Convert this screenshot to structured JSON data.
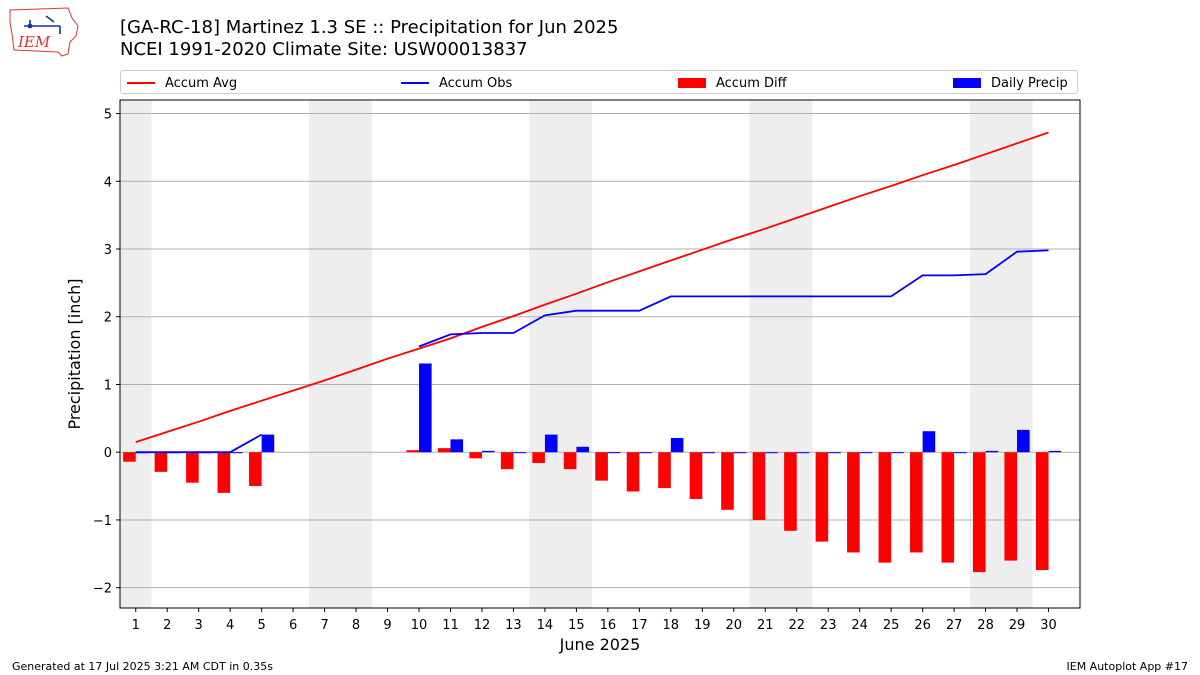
{
  "header": {
    "title_line1": "[GA-RC-18] Martinez 1.3 SE :: Precipitation for Jun 2025",
    "title_line2": "NCEI 1991-2020 Climate Site: USW00013837",
    "logo_text": "IEM"
  },
  "footer": {
    "left": "Generated at 17 Jul 2025 3:21 AM CDT in 0.35s",
    "right": "IEM Autoplot App #17"
  },
  "chart_data": {
    "type": "bar",
    "xlabel": "June 2025",
    "ylabel": "Precipitation [inch]",
    "xlim": [
      0.5,
      31
    ],
    "ylim": [
      -2.3,
      5.2
    ],
    "yticks": [
      -2,
      -1,
      0,
      1,
      2,
      3,
      4,
      5
    ],
    "ytick_labels": [
      "−2",
      "−1",
      "0",
      "1",
      "2",
      "3",
      "4",
      "5"
    ],
    "x": [
      1,
      2,
      3,
      4,
      5,
      6,
      7,
      8,
      9,
      10,
      11,
      12,
      13,
      14,
      15,
      16,
      17,
      18,
      19,
      20,
      21,
      22,
      23,
      24,
      25,
      26,
      27,
      28,
      29,
      30
    ],
    "xtick_labels": [
      "1",
      "2",
      "3",
      "4",
      "5",
      "6",
      "7",
      "8",
      "9",
      "10",
      "11",
      "12",
      "13",
      "14",
      "15",
      "16",
      "17",
      "18",
      "19",
      "20",
      "21",
      "22",
      "23",
      "24",
      "25",
      "26",
      "27",
      "28",
      "29",
      "30"
    ],
    "weekend_spans": [
      [
        0.5,
        1.5
      ],
      [
        6.5,
        8.5
      ],
      [
        13.5,
        15.5
      ],
      [
        20.5,
        22.5
      ],
      [
        27.5,
        29.5
      ]
    ],
    "grid": "y",
    "legend_position": "top",
    "colors": {
      "accum_avg": "#ff0000",
      "accum_obs": "#0000ff",
      "accum_diff": "#ff0000",
      "daily_precip": "#0000ff",
      "weekend_shade": "#eeeeee",
      "grid": "#b0b0b0"
    },
    "series": [
      {
        "name": "Accum Avg",
        "kind": "line",
        "values": [
          0.15,
          0.3,
          0.45,
          0.61,
          0.76,
          0.91,
          1.06,
          1.22,
          1.38,
          1.53,
          1.68,
          1.85,
          2.01,
          2.18,
          2.34,
          2.51,
          2.67,
          2.83,
          2.99,
          3.15,
          3.3,
          3.46,
          3.62,
          3.78,
          3.93,
          4.09,
          4.24,
          4.4,
          4.56,
          4.72
        ]
      },
      {
        "name": "Accum Obs",
        "kind": "line",
        "values": [
          0.0,
          0.0,
          0.0,
          0.0,
          0.26,
          null,
          null,
          null,
          null,
          1.56,
          1.74,
          1.76,
          1.76,
          2.02,
          2.09,
          2.09,
          2.09,
          2.3,
          2.3,
          2.3,
          2.3,
          2.3,
          2.3,
          2.3,
          2.3,
          2.61,
          2.61,
          2.63,
          2.96,
          2.98
        ]
      },
      {
        "name": "Accum Diff",
        "kind": "bar",
        "values": [
          -0.14,
          -0.29,
          -0.45,
          -0.6,
          -0.5,
          null,
          null,
          null,
          null,
          0.03,
          0.06,
          -0.09,
          -0.25,
          -0.16,
          -0.25,
          -0.42,
          -0.58,
          -0.53,
          -0.69,
          -0.85,
          -1.0,
          -1.16,
          -1.32,
          -1.48,
          -1.63,
          -1.48,
          -1.63,
          -1.77,
          -1.6,
          -1.74
        ]
      },
      {
        "name": "Daily Precip",
        "kind": "bar",
        "values": [
          0.0,
          0.0,
          0.0,
          0.0,
          0.26,
          null,
          null,
          null,
          null,
          1.31,
          0.19,
          0.02,
          0.0,
          0.26,
          0.08,
          0.0,
          0.0,
          0.21,
          0.0,
          0.0,
          0.0,
          0.0,
          0.0,
          0.0,
          0.0,
          0.31,
          0.0,
          0.02,
          0.33,
          0.02
        ]
      }
    ]
  }
}
